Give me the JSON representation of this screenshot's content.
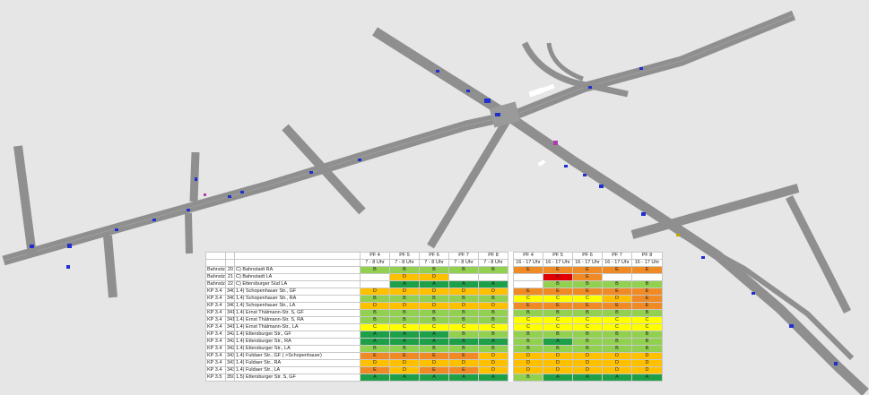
{
  "colors": {
    "background": "#e6e6e6",
    "road": "#8f8f8f",
    "road_edge": "#7a7a7a",
    "vehicle": "#1f2fd0",
    "los": {
      "A": "#1ea048",
      "B": "#92d050",
      "C": "#ffff00",
      "D": "#ffc000",
      "E": "#f08a24",
      "F": "#e00000"
    }
  },
  "table": {
    "period_headers": {
      "morning": [
        "PF 4",
        "PF 5",
        "PF 6",
        "PF 7",
        "PF 8"
      ],
      "evening": [
        "PF 4",
        "PF 5",
        "PF 6",
        "PF 7",
        "PF 8"
      ]
    },
    "time_headers": {
      "morning": [
        "7 - 8 Uhr",
        "7 - 8 Uhr",
        "7 - 8 Uhr",
        "7 - 8 Uhr",
        "7 - 8 Uhr"
      ],
      "evening": [
        "16 - 17 Uhr",
        "16 - 17 Uhr",
        "16 - 17 Uhr",
        "16 - 17 Uhr",
        "16 - 17 Uhr"
      ]
    },
    "rows": [
      {
        "node": "Bahnstz",
        "id": "20",
        "name": "C) Bahnstadt RA",
        "morning": [
          "B",
          "B",
          "B",
          "B",
          "B"
        ],
        "evening": [
          "E",
          "E",
          "E",
          "E",
          "E"
        ]
      },
      {
        "node": "Bahnstz",
        "id": "21",
        "name": "C) Bahnstadt LA",
        "morning": [
          "",
          "D",
          "D",
          "",
          ""
        ],
        "evening": [
          "",
          "F",
          "E",
          "",
          ""
        ]
      },
      {
        "node": "Bahnstz",
        "id": "22",
        "name": "C) Ettersburger Süd LA",
        "morning": [
          "",
          "A",
          "A",
          "A",
          "A"
        ],
        "evening": [
          "",
          "B",
          "B",
          "B",
          "B"
        ]
      },
      {
        "node": "KP 3.4",
        "id": "3401",
        "name": "1.4) Schopenhauer Str., GF",
        "morning": [
          "D",
          "D",
          "D",
          "D",
          "D"
        ],
        "evening": [
          "E",
          "E",
          "E",
          "E",
          "E"
        ]
      },
      {
        "node": "KP 3.4",
        "id": "3402",
        "name": "1.4) Schopenhauer Str., RA",
        "morning": [
          "B",
          "B",
          "B",
          "B",
          "B"
        ],
        "evening": [
          "C",
          "C",
          "C",
          "D",
          "E"
        ]
      },
      {
        "node": "KP 3.4",
        "id": "3403",
        "name": "1.4) Schopenhauer Str., LA",
        "morning": [
          "D",
          "D",
          "D",
          "D",
          "D"
        ],
        "evening": [
          "E",
          "E",
          "E",
          "E",
          "E"
        ]
      },
      {
        "node": "KP 3.4",
        "id": "3411",
        "name": "1.4) Ernst Thälmann-Str. S, GF",
        "morning": [
          "B",
          "B",
          "B",
          "B",
          "B"
        ],
        "evening": [
          "B",
          "B",
          "B",
          "B",
          "B"
        ]
      },
      {
        "node": "KP 3.4",
        "id": "3412",
        "name": "1.4) Ernst Thälmann-Str. S, RA",
        "morning": [
          "B",
          "B",
          "B",
          "B",
          "B"
        ],
        "evening": [
          "C",
          "C",
          "C",
          "C",
          "C"
        ]
      },
      {
        "node": "KP 3.4",
        "id": "3413",
        "name": "1.4) Ernst Thälmann-Str., LA",
        "morning": [
          "C",
          "C",
          "C",
          "C",
          "C"
        ],
        "evening": [
          "C",
          "C",
          "C",
          "C",
          "C"
        ]
      },
      {
        "node": "KP 3.4",
        "id": "3421",
        "name": "1.4) Ettersburger Str., GF",
        "morning": [
          "A",
          "A",
          "A",
          "B",
          "B"
        ],
        "evening": [
          "B",
          "B",
          "B",
          "B",
          "B"
        ]
      },
      {
        "node": "KP 3.4",
        "id": "3422",
        "name": "1.4) Ettersburger Str., RA",
        "morning": [
          "A",
          "A",
          "A",
          "A",
          "A"
        ],
        "evening": [
          "B",
          "A",
          "B",
          "B",
          "B"
        ]
      },
      {
        "node": "KP 3.4",
        "id": "3423",
        "name": "1.4) Ettersburger Str., LA",
        "morning": [
          "B",
          "B",
          "B",
          "B",
          "B"
        ],
        "evening": [
          "B",
          "B",
          "B",
          "B",
          "B"
        ]
      },
      {
        "node": "KP 3.4",
        "id": "3431",
        "name": "1.4) Fuldaer Str., GF ( >Schopenhauer)",
        "morning": [
          "E",
          "E",
          "E",
          "E",
          "D"
        ],
        "evening": [
          "D",
          "D",
          "D",
          "D",
          "D"
        ]
      },
      {
        "node": "KP 3.4",
        "id": "3432",
        "name": "1.4) Fuldaer Str., RA",
        "morning": [
          "D",
          "D",
          "D",
          "D",
          "D"
        ],
        "evening": [
          "D",
          "D",
          "D",
          "D",
          "D"
        ]
      },
      {
        "node": "KP 3.4",
        "id": "3433",
        "name": "1.4) Fuldaer Str., LA",
        "morning": [
          "E",
          "D",
          "E",
          "E",
          "D"
        ],
        "evening": [
          "D",
          "D",
          "D",
          "D",
          "D"
        ]
      },
      {
        "node": "KP 3.5",
        "id": "3501",
        "name": "1.5) Ettersburger Str. S, GF",
        "morning": [
          "A",
          "A",
          "A",
          "A",
          "A"
        ],
        "evening": [
          "B",
          "A",
          "A",
          "A",
          "A"
        ]
      }
    ]
  }
}
